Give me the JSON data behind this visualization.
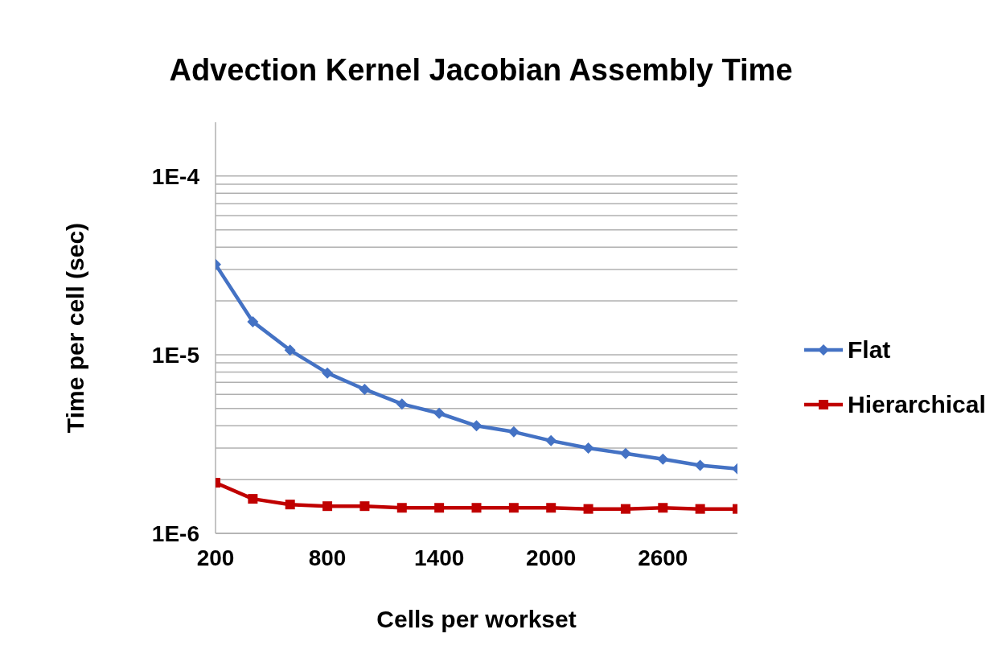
{
  "chart_data": {
    "type": "line",
    "title": "Advection Kernel Jacobian Assembly Time",
    "xlabel": "Cells per workset",
    "ylabel": "Time per cell (sec)",
    "x": [
      200,
      400,
      600,
      800,
      1000,
      1200,
      1400,
      1600,
      1800,
      2000,
      2200,
      2400,
      2600,
      2800,
      3000
    ],
    "xlim": [
      200,
      3000
    ],
    "xticks": [
      200,
      800,
      1400,
      2000,
      2600
    ],
    "log": "y",
    "ylim": [
      1e-06,
      0.0002
    ],
    "yticks": [
      {
        "value": 1e-06,
        "label": "1E-6"
      },
      {
        "value": 2e-06,
        "label": null
      },
      {
        "value": 3e-06,
        "label": null
      },
      {
        "value": 4e-06,
        "label": null
      },
      {
        "value": 5e-06,
        "label": null
      },
      {
        "value": 6e-06,
        "label": null
      },
      {
        "value": 7e-06,
        "label": null
      },
      {
        "value": 8e-06,
        "label": null
      },
      {
        "value": 9e-06,
        "label": null
      },
      {
        "value": 1e-05,
        "label": "1E-5"
      },
      {
        "value": 2e-05,
        "label": null
      },
      {
        "value": 3e-05,
        "label": null
      },
      {
        "value": 4e-05,
        "label": null
      },
      {
        "value": 5e-05,
        "label": null
      },
      {
        "value": 6e-05,
        "label": null
      },
      {
        "value": 7e-05,
        "label": null
      },
      {
        "value": 8e-05,
        "label": null
      },
      {
        "value": 9e-05,
        "label": null
      },
      {
        "value": 0.0001,
        "label": "1E-4"
      }
    ],
    "grid": "y",
    "legend": "right",
    "series": [
      {
        "name": "Flat",
        "color": "#4472c4",
        "marker": "diamond",
        "values": [
          3.2e-05,
          1.53e-05,
          1.06e-05,
          7.9e-06,
          6.4e-06,
          5.3e-06,
          4.7e-06,
          4e-06,
          3.7e-06,
          3.3e-06,
          3e-06,
          2.8e-06,
          2.6e-06,
          2.4e-06,
          2.3e-06
        ]
      },
      {
        "name": "Hierarchical",
        "color": "#c00000",
        "marker": "square",
        "values": [
          1.92e-06,
          1.56e-06,
          1.45e-06,
          1.42e-06,
          1.42e-06,
          1.39e-06,
          1.39e-06,
          1.39e-06,
          1.39e-06,
          1.39e-06,
          1.37e-06,
          1.37e-06,
          1.39e-06,
          1.37e-06,
          1.37e-06
        ]
      }
    ]
  }
}
